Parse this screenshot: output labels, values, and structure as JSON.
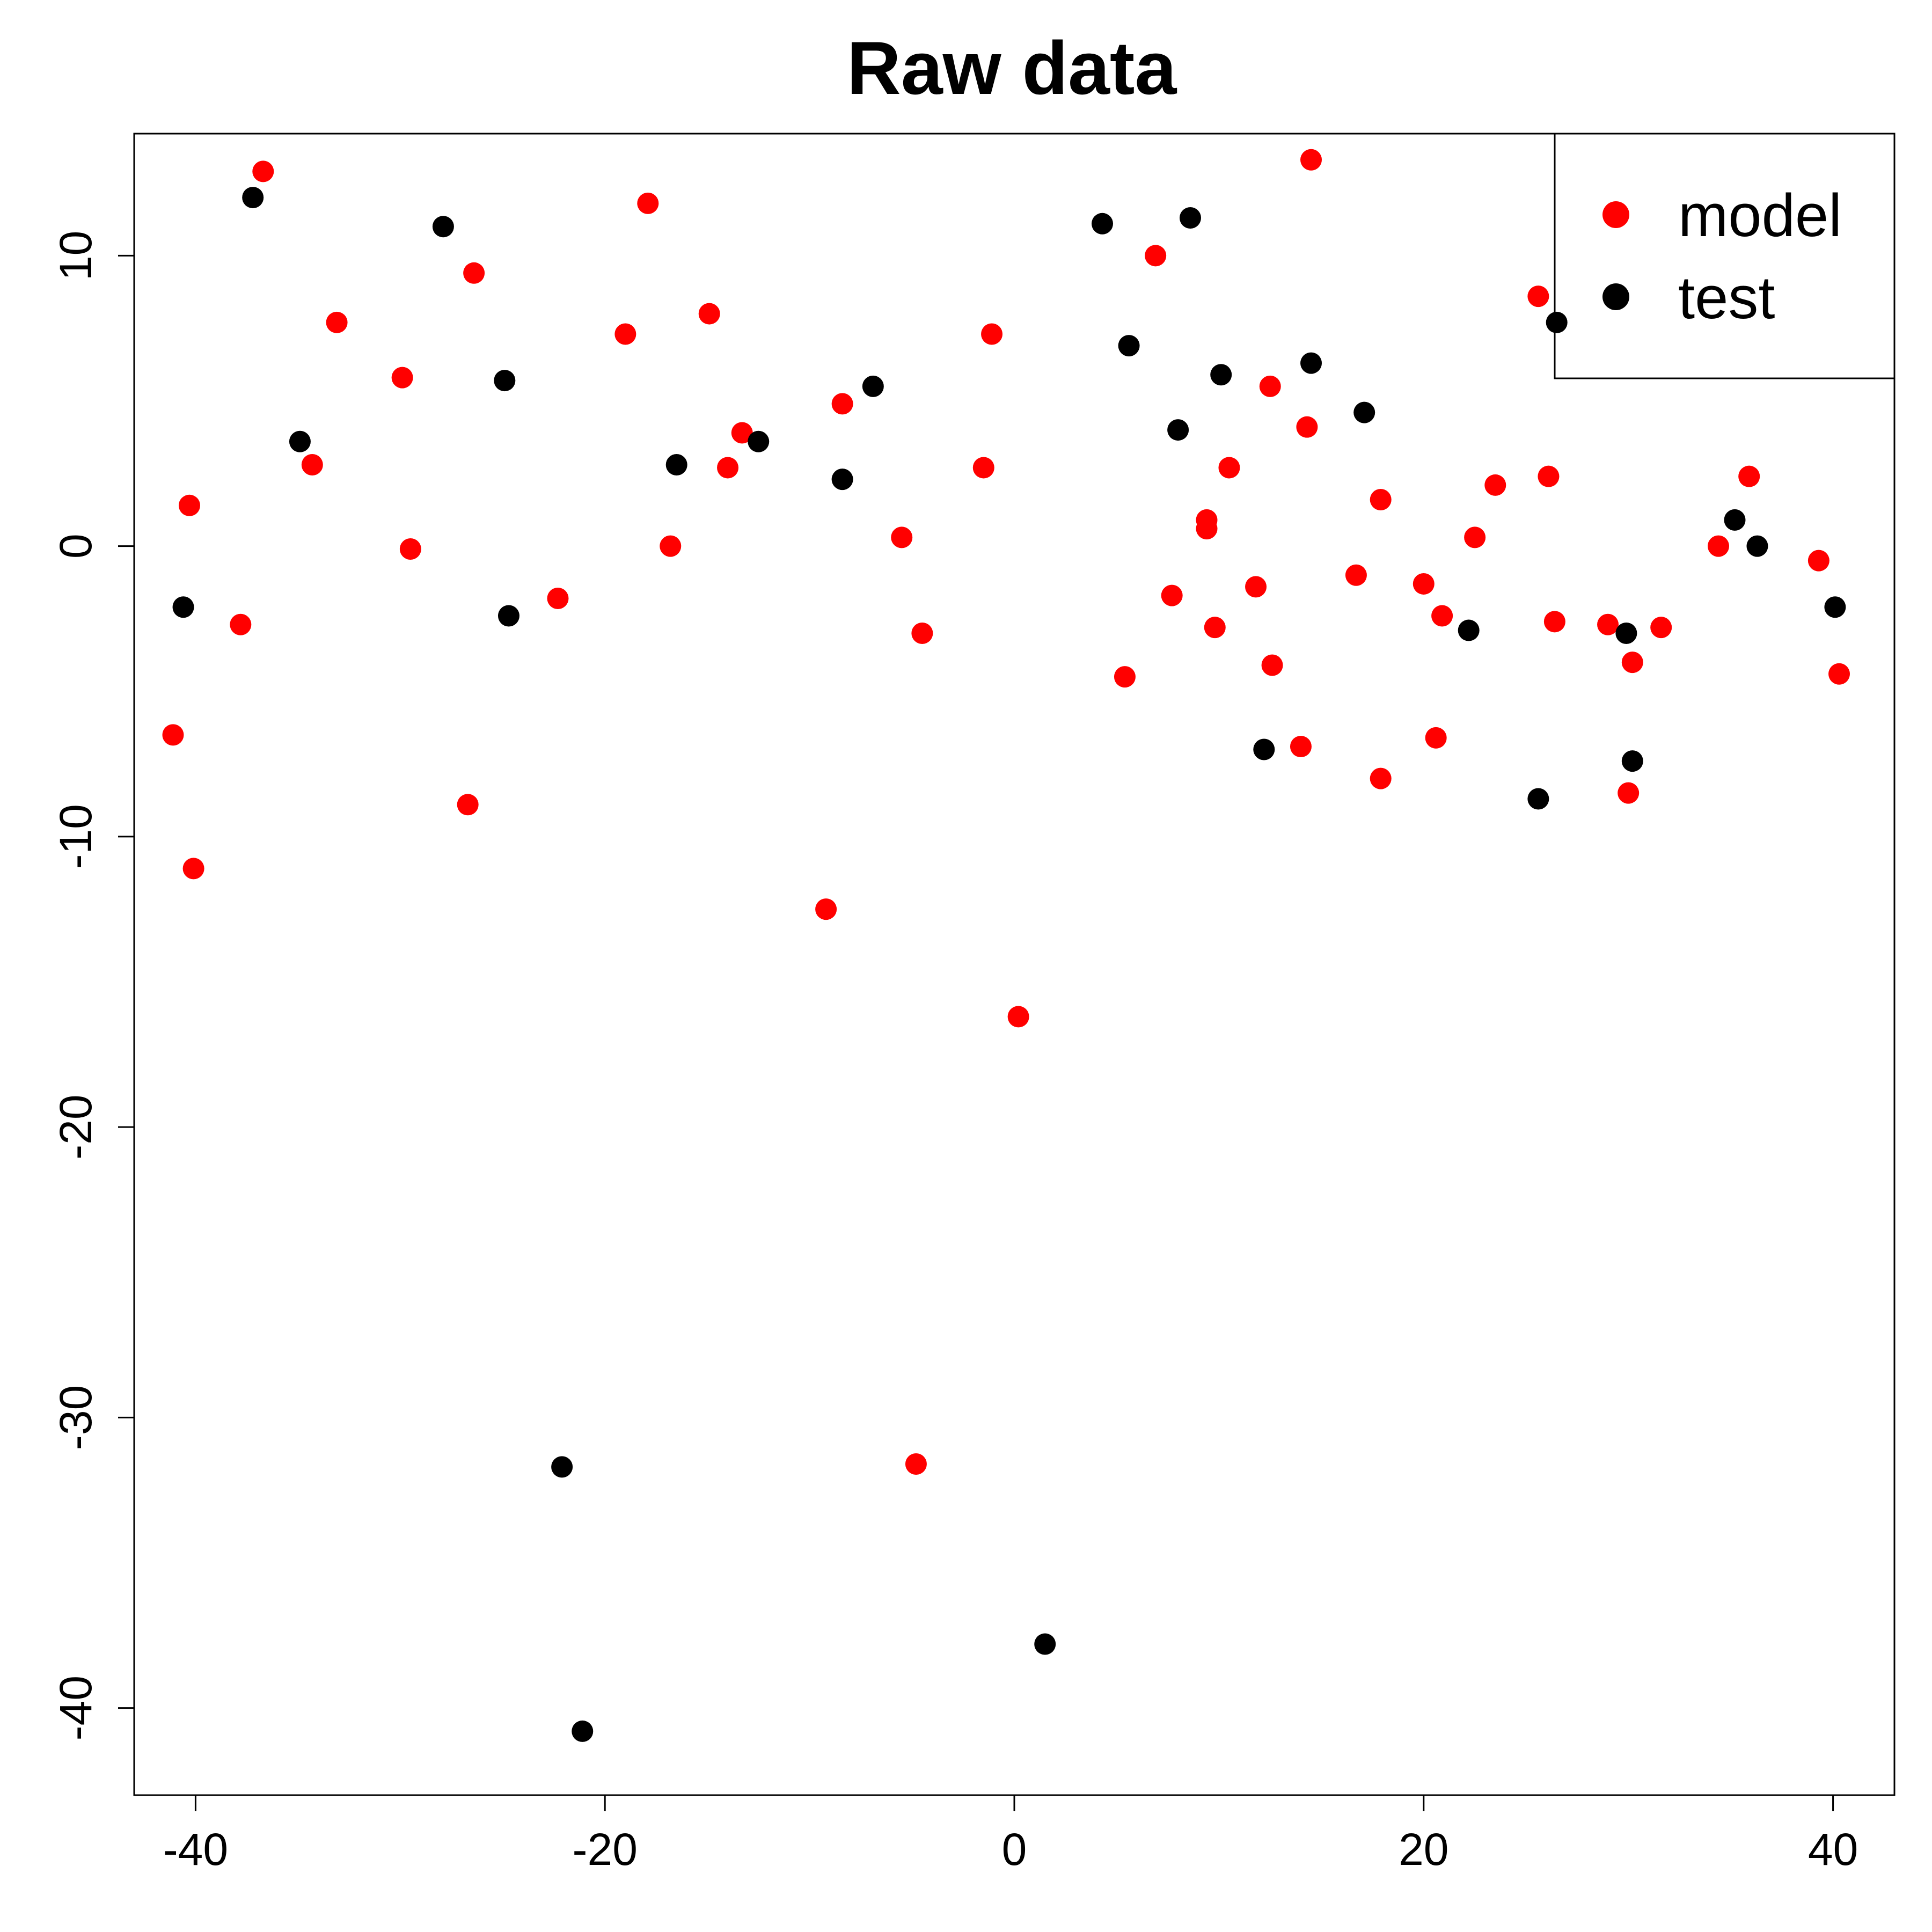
{
  "chart_data": {
    "type": "scatter",
    "title": "Raw data",
    "xlabel": "",
    "ylabel": "",
    "xlim": [
      -43,
      43
    ],
    "ylim": [
      -43,
      14.2
    ],
    "xticks": [
      -40,
      -20,
      0,
      20,
      40
    ],
    "xtick_labels": [
      "-40",
      "-20",
      "0",
      "20",
      "40"
    ],
    "yticks": [
      -40,
      -30,
      -20,
      -10,
      0,
      10
    ],
    "ytick_labels": [
      "-40",
      "-30",
      "-20",
      "-10",
      "0",
      "10"
    ],
    "grid": false,
    "legend": {
      "position": "top-right",
      "entries": [
        {
          "label": "model",
          "color": "#ff0000"
        },
        {
          "label": "test",
          "color": "#000000"
        }
      ]
    },
    "series": [
      {
        "name": "model",
        "color": "#ff0000",
        "points": [
          [
            -41.1,
            -6.5
          ],
          [
            -40.3,
            1.4
          ],
          [
            -40.1,
            -11.1
          ],
          [
            -37.8,
            -2.7
          ],
          [
            -36.7,
            12.9
          ],
          [
            -34.3,
            2.8
          ],
          [
            -33.1,
            7.7
          ],
          [
            -29.9,
            5.8
          ],
          [
            -29.5,
            -0.1
          ],
          [
            -26.7,
            -8.9
          ],
          [
            -26.4,
            9.4
          ],
          [
            -22.3,
            -1.8
          ],
          [
            -19.0,
            7.3
          ],
          [
            -17.9,
            11.8
          ],
          [
            -16.8,
            0.0
          ],
          [
            -14.9,
            8.0
          ],
          [
            -14.0,
            2.7
          ],
          [
            -13.3,
            3.9
          ],
          [
            -9.2,
            -12.5
          ],
          [
            -8.4,
            4.9
          ],
          [
            -5.5,
            0.3
          ],
          [
            -4.8,
            -31.6
          ],
          [
            -4.5,
            -3.0
          ],
          [
            -1.5,
            2.7
          ],
          [
            -1.1,
            7.3
          ],
          [
            0.2,
            -16.2
          ],
          [
            5.4,
            -4.5
          ],
          [
            6.9,
            10.0
          ],
          [
            7.7,
            -1.7
          ],
          [
            9.4,
            0.9
          ],
          [
            9.4,
            0.6
          ],
          [
            9.8,
            -2.8
          ],
          [
            10.5,
            2.7
          ],
          [
            11.8,
            -1.4
          ],
          [
            12.5,
            5.5
          ],
          [
            12.6,
            -4.1
          ],
          [
            14.0,
            -6.9
          ],
          [
            14.3,
            4.1
          ],
          [
            14.5,
            13.3
          ],
          [
            16.7,
            -1.0
          ],
          [
            17.9,
            1.6
          ],
          [
            17.9,
            -8.0
          ],
          [
            20.0,
            -1.3
          ],
          [
            20.6,
            -6.6
          ],
          [
            20.9,
            -2.4
          ],
          [
            22.5,
            0.3
          ],
          [
            23.5,
            2.1
          ],
          [
            25.6,
            8.6
          ],
          [
            26.1,
            2.4
          ],
          [
            26.4,
            -2.6
          ],
          [
            29.0,
            -2.7
          ],
          [
            30.0,
            -8.5
          ],
          [
            30.2,
            -4.0
          ],
          [
            31.6,
            -2.8
          ],
          [
            34.4,
            0.0
          ],
          [
            35.9,
            2.4
          ],
          [
            39.3,
            -0.5
          ],
          [
            40.3,
            -4.4
          ]
        ]
      },
      {
        "name": "test",
        "color": "#000000",
        "points": [
          [
            -40.6,
            -2.1
          ],
          [
            -37.2,
            12.0
          ],
          [
            -34.9,
            3.6
          ],
          [
            -27.9,
            11.0
          ],
          [
            -24.9,
            5.7
          ],
          [
            -24.7,
            -2.4
          ],
          [
            -22.1,
            -31.7
          ],
          [
            -21.1,
            -40.8
          ],
          [
            -16.5,
            2.8
          ],
          [
            -12.5,
            3.6
          ],
          [
            -8.4,
            2.3
          ],
          [
            -6.9,
            5.5
          ],
          [
            1.5,
            -37.8
          ],
          [
            4.3,
            11.1
          ],
          [
            5.6,
            6.9
          ],
          [
            8.0,
            4.0
          ],
          [
            8.6,
            11.3
          ],
          [
            10.1,
            5.9
          ],
          [
            12.2,
            -7.0
          ],
          [
            14.5,
            6.3
          ],
          [
            17.1,
            4.6
          ],
          [
            22.2,
            -2.9
          ],
          [
            25.6,
            -8.7
          ],
          [
            26.5,
            7.7
          ],
          [
            29.9,
            -3.0
          ],
          [
            30.2,
            -7.4
          ],
          [
            35.2,
            0.9
          ],
          [
            36.3,
            0.0
          ],
          [
            40.1,
            -2.1
          ]
        ]
      }
    ]
  }
}
